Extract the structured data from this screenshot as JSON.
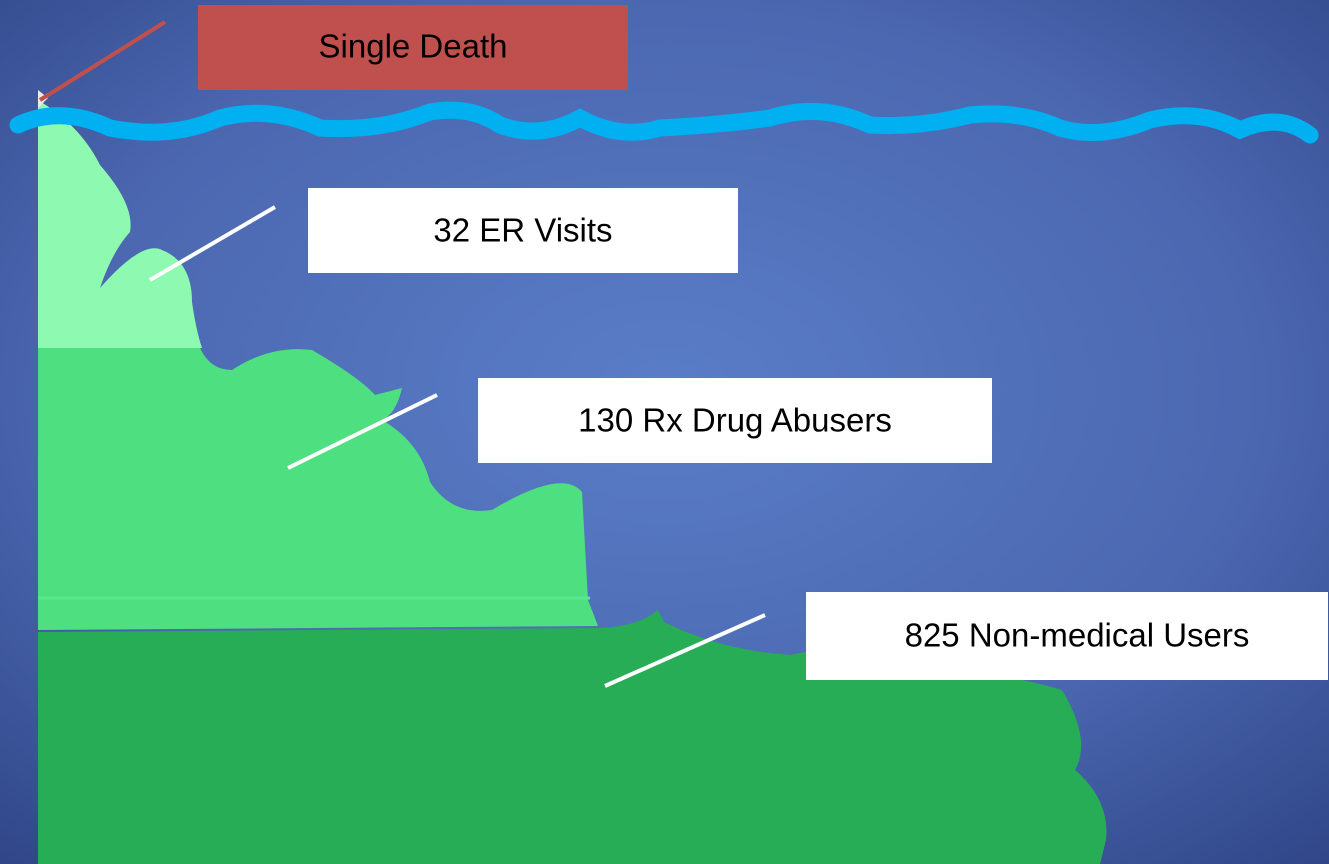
{
  "tiers": [
    {
      "label": "Single Death"
    },
    {
      "label": "32 ER Visits"
    },
    {
      "label": "130 Rx Drug Abusers"
    },
    {
      "label": "825 Non-medical Users"
    }
  ]
}
